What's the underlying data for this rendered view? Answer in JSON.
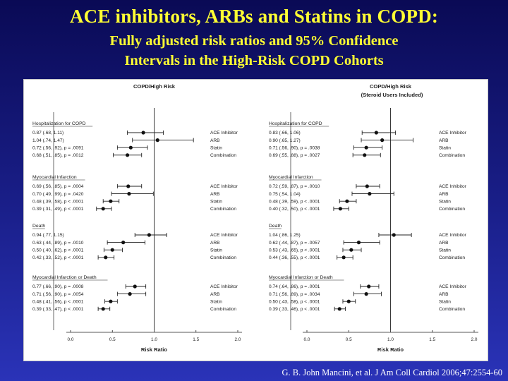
{
  "slide": {
    "title": "ACE inhibitors, ARBs and Statins in COPD:",
    "subtitle_line1": "Fully adjusted risk ratios and  95% Confidence",
    "subtitle_line2": "Intervals in the High-Risk COPD Cohorts",
    "citation": "G. B. John Mancini, et al. J Am Coll Cardiol 2006;47:2554-60"
  },
  "colors": {
    "background": "#1a1f8a",
    "title": "#ffff33",
    "panel": "#ffffff",
    "ink": "#222222"
  },
  "chart_data": [
    {
      "type": "forest",
      "title": "COPD/High Risk",
      "subtitle": "",
      "xlabel": "Risk Ratio",
      "xlim": [
        0.0,
        2.0
      ],
      "xticks": [
        "0.0",
        "0.5",
        "1.0",
        "1.5",
        "2.0"
      ],
      "reference_line": 1.0,
      "groups": [
        {
          "label": "Hospitalization for COPD",
          "rows": [
            {
              "treatment": "ACE Inhibitor",
              "text": "0.87 (.68, 1.11)",
              "rr": 0.87,
              "lo": 0.68,
              "hi": 1.11
            },
            {
              "treatment": "ARB",
              "text": "1.04 (.74, 1.47)",
              "rr": 1.04,
              "lo": 0.74,
              "hi": 1.47
            },
            {
              "treatment": "Statin",
              "text": "0.72 (.56, .92), p = .0091",
              "rr": 0.72,
              "lo": 0.56,
              "hi": 0.92
            },
            {
              "treatment": "Combination",
              "text": "0.68 (.51, .85), p = .0012",
              "rr": 0.68,
              "lo": 0.51,
              "hi": 0.85
            }
          ]
        },
        {
          "label": "Myocardial Infarction",
          "rows": [
            {
              "treatment": "ACE Inhibitor",
              "text": "0.69 (.56, .85), p = .0004",
              "rr": 0.69,
              "lo": 0.56,
              "hi": 0.85
            },
            {
              "treatment": "ARB",
              "text": "0.70 (.49, .99), p = .0420",
              "rr": 0.7,
              "lo": 0.49,
              "hi": 0.99
            },
            {
              "treatment": "Statin",
              "text": "0.48 (.39, .58), p < .0001",
              "rr": 0.48,
              "lo": 0.39,
              "hi": 0.58
            },
            {
              "treatment": "Combination",
              "text": "0.39 (.31, .49), p < .0001",
              "rr": 0.39,
              "lo": 0.31,
              "hi": 0.49
            }
          ]
        },
        {
          "label": "Death",
          "rows": [
            {
              "treatment": "ACE Inhibitor",
              "text": "0.94 (.77, 1.15)",
              "rr": 0.94,
              "lo": 0.77,
              "hi": 1.15
            },
            {
              "treatment": "ARB",
              "text": "0.63 (.44, .89), p = .0010",
              "rr": 0.63,
              "lo": 0.44,
              "hi": 0.89
            },
            {
              "treatment": "Statin",
              "text": "0.50 (.40, .62), p < .0001",
              "rr": 0.5,
              "lo": 0.4,
              "hi": 0.62
            },
            {
              "treatment": "Combination",
              "text": "0.42 (.33, .52), p < .0001",
              "rr": 0.42,
              "lo": 0.33,
              "hi": 0.52
            }
          ]
        },
        {
          "label": "Myocardial Infarction or Death",
          "rows": [
            {
              "treatment": "ACE Inhibitor",
              "text": "0.77 (.66, .90), p = .0008",
              "rr": 0.77,
              "lo": 0.66,
              "hi": 0.9
            },
            {
              "treatment": "ARB",
              "text": "0.71 (.56, .90), p = .0054",
              "rr": 0.71,
              "lo": 0.56,
              "hi": 0.9
            },
            {
              "treatment": "Statin",
              "text": "0.48 (.41, .56), p < .0001",
              "rr": 0.48,
              "lo": 0.41,
              "hi": 0.56
            },
            {
              "treatment": "Combination",
              "text": "0.39 (.33, .47), p < .0001",
              "rr": 0.39,
              "lo": 0.33,
              "hi": 0.47
            }
          ]
        }
      ]
    },
    {
      "type": "forest",
      "title": "COPD/High Risk",
      "subtitle": "(Steroid Users Included)",
      "xlabel": "Risk Ratio",
      "xlim": [
        0.0,
        2.0
      ],
      "xticks": [
        "0.0",
        "0.5",
        "1.0",
        "1.5",
        "2.0"
      ],
      "reference_line": 1.0,
      "groups": [
        {
          "label": "Hospitalization for COPD",
          "rows": [
            {
              "treatment": "ACE Inhibitor",
              "text": "0.83 (.66, 1.06)",
              "rr": 0.83,
              "lo": 0.66,
              "hi": 1.06
            },
            {
              "treatment": "ARB",
              "text": "0.90 (.65, 1.27)",
              "rr": 0.9,
              "lo": 0.65,
              "hi": 1.27
            },
            {
              "treatment": "Statin",
              "text": "0.71 (.56, .90), p = .0038",
              "rr": 0.71,
              "lo": 0.56,
              "hi": 0.9
            },
            {
              "treatment": "Combination",
              "text": "0.69 (.55, .88), p = .0027",
              "rr": 0.69,
              "lo": 0.55,
              "hi": 0.88
            }
          ]
        },
        {
          "label": "Myocardial Infarction",
          "rows": [
            {
              "treatment": "ACE Inhibitor",
              "text": "0.72 (.59, .87), p = .0010",
              "rr": 0.72,
              "lo": 0.59,
              "hi": 0.87
            },
            {
              "treatment": "ARB",
              "text": "0.75 (.54, 1.04)",
              "rr": 0.75,
              "lo": 0.54,
              "hi": 1.04
            },
            {
              "treatment": "Statin",
              "text": "0.48 (.39, .59), p < .0001",
              "rr": 0.48,
              "lo": 0.39,
              "hi": 0.59
            },
            {
              "treatment": "Combination",
              "text": "0.40 (.32, .50), p < .0001",
              "rr": 0.4,
              "lo": 0.32,
              "hi": 0.5
            }
          ]
        },
        {
          "label": "Death",
          "rows": [
            {
              "treatment": "ACE Inhibitor",
              "text": "1.04 (.86, 1.25)",
              "rr": 1.04,
              "lo": 0.86,
              "hi": 1.25
            },
            {
              "treatment": "ARB",
              "text": "0.62 (.44, .87), p = .0057",
              "rr": 0.62,
              "lo": 0.44,
              "hi": 0.87
            },
            {
              "treatment": "Statin",
              "text": "0.53 (.43, .65), p < .0001",
              "rr": 0.53,
              "lo": 0.43,
              "hi": 0.65
            },
            {
              "treatment": "Combination",
              "text": "0.44 (.36, .55), p < .0001",
              "rr": 0.44,
              "lo": 0.36,
              "hi": 0.55
            }
          ]
        },
        {
          "label": "Myocardial Infarction or Death",
          "rows": [
            {
              "treatment": "ACE Inhibitor",
              "text": "0.74 (.64, .86), p = .0001",
              "rr": 0.74,
              "lo": 0.64,
              "hi": 0.86
            },
            {
              "treatment": "ARB",
              "text": "0.71 (.56, .89), p = .0034",
              "rr": 0.71,
              "lo": 0.56,
              "hi": 0.89
            },
            {
              "treatment": "Statin",
              "text": "0.50 (.43, .58), p < .0001",
              "rr": 0.5,
              "lo": 0.43,
              "hi": 0.58
            },
            {
              "treatment": "Combination",
              "text": "0.39 (.33, .46), p < .0001",
              "rr": 0.39,
              "lo": 0.33,
              "hi": 0.46
            }
          ]
        }
      ]
    }
  ]
}
